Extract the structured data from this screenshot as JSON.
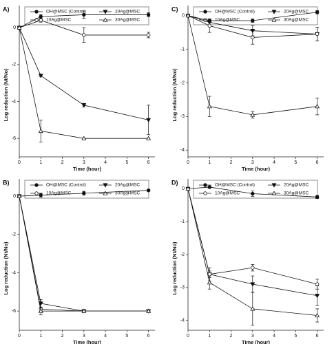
{
  "chart_data": [
    {
      "type": "line",
      "label": "A)",
      "xlabel": "Time (hour)",
      "ylabel": "Log reduction (Nt/No)",
      "x": [
        0,
        1,
        3,
        6
      ],
      "xlim": [
        0,
        6.3
      ],
      "xticks": [
        0,
        1,
        2,
        3,
        4,
        5,
        6
      ],
      "ylim": [
        -7,
        1.2
      ],
      "yticks": [
        0,
        -2,
        -4,
        -6
      ],
      "legend": "top",
      "series": [
        {
          "name": "OH@MSC (Control)",
          "color": "#111111",
          "marker": "circle-filled",
          "values": [
            0,
            0.6,
            0.7,
            0.7
          ],
          "errors": [
            0,
            0.1,
            0.2,
            0.1
          ]
        },
        {
          "name": "20Ag@MSC",
          "color": "#111111",
          "marker": "triangle-down-filled",
          "values": [
            0,
            -2.6,
            -4.2,
            -5.0
          ],
          "errors": [
            0,
            0.05,
            0.1,
            0.8
          ]
        },
        {
          "name": "10Ag@MSC",
          "color": "#111111",
          "marker": "circle-open",
          "values": [
            0,
            0.4,
            -0.4,
            -0.4
          ],
          "errors": [
            0,
            0.1,
            0.4,
            0.15
          ]
        },
        {
          "name": "30Ag@MSC",
          "color": "#111111",
          "marker": "triangle-up-open",
          "values": [
            0,
            -5.6,
            -6.0,
            -6.0
          ],
          "errors": [
            0,
            0.6,
            0,
            0
          ]
        }
      ]
    },
    {
      "type": "line",
      "label": "C)",
      "xlabel": "Time (hour)",
      "ylabel": "Log reduction (Nt/No)",
      "x": [
        0,
        1,
        3,
        6
      ],
      "xlim": [
        0,
        6.3
      ],
      "xticks": [
        0,
        1,
        2,
        3,
        4,
        5,
        6
      ],
      "ylim": [
        -4.2,
        0.3
      ],
      "yticks": [
        0,
        -1,
        -2,
        -3,
        -4
      ],
      "legend": "top",
      "series": [
        {
          "name": "OH@MSC (Control)",
          "color": "#111111",
          "marker": "circle-filled",
          "values": [
            0,
            -0.15,
            -0.15,
            0.1
          ],
          "errors": [
            0,
            0.05,
            0.05,
            0.05
          ]
        },
        {
          "name": "20Ag@MSC",
          "color": "#111111",
          "marker": "triangle-down-filled",
          "values": [
            0,
            -0.2,
            -0.45,
            -0.55
          ],
          "errors": [
            0,
            0.1,
            0.15,
            0.2
          ]
        },
        {
          "name": "10Ag@MSC",
          "color": "#111111",
          "marker": "circle-open",
          "values": [
            0,
            -0.3,
            -0.65,
            -0.55
          ],
          "errors": [
            0,
            0.2,
            0.2,
            0.2
          ]
        },
        {
          "name": "30Ag@MSC",
          "color": "#111111",
          "marker": "triangle-up-open",
          "values": [
            0,
            -2.7,
            -2.95,
            -2.7
          ],
          "errors": [
            0,
            0.3,
            0.1,
            0.25
          ]
        }
      ]
    },
    {
      "type": "line",
      "label": "B)",
      "xlabel": "Time (hour)",
      "ylabel": "Log reduction (Nt/No)",
      "x": [
        0,
        1,
        3,
        6
      ],
      "xlim": [
        0,
        6.3
      ],
      "xticks": [
        0,
        1,
        2,
        3,
        4,
        5,
        6
      ],
      "ylim": [
        -7,
        0.9
      ],
      "yticks": [
        0,
        -2,
        -4,
        -6
      ],
      "legend": "top",
      "series": [
        {
          "name": "OH@MSC (Control)",
          "color": "#111111",
          "marker": "circle-filled",
          "values": [
            0,
            0.05,
            0.15,
            0.3
          ],
          "errors": [
            0,
            0.1,
            0.1,
            0.05
          ]
        },
        {
          "name": "20Ag@MSC",
          "color": "#111111",
          "marker": "triangle-down-filled",
          "values": [
            0,
            -5.6,
            -6.0,
            -6.0
          ],
          "errors": [
            0,
            0.2,
            0,
            0
          ]
        },
        {
          "name": "10Ag@MSC",
          "color": "#111111",
          "marker": "circle-open",
          "values": [
            0,
            -5.9,
            -6.0,
            -6.0
          ],
          "errors": [
            0,
            0.1,
            0,
            0
          ]
        },
        {
          "name": "30Ag@MSC",
          "color": "#111111",
          "marker": "triangle-up-open",
          "values": [
            0,
            -6.0,
            -6.0,
            -6.0
          ],
          "errors": [
            0,
            0.2,
            0,
            0
          ]
        }
      ]
    },
    {
      "type": "line",
      "label": "D)",
      "xlabel": "Time (hour)",
      "ylabel": "Log reduction (Nt/No)",
      "x": [
        0,
        1,
        3,
        6
      ],
      "xlim": [
        0,
        6.3
      ],
      "xticks": [
        0,
        1,
        2,
        3,
        4,
        5,
        6
      ],
      "ylim": [
        -4.3,
        0.3
      ],
      "yticks": [
        0,
        -1,
        -2,
        -3,
        -4
      ],
      "legend": "top",
      "series": [
        {
          "name": "OH@MSC (Control)",
          "color": "#111111",
          "marker": "circle-filled",
          "values": [
            0,
            0.05,
            -0.15,
            -0.25
          ],
          "errors": [
            0,
            0.03,
            0.08,
            0.05
          ]
        },
        {
          "name": "20Ag@MSC",
          "color": "#111111",
          "marker": "triangle-down-filled",
          "values": [
            0,
            -2.6,
            -2.9,
            -3.25
          ],
          "errors": [
            0,
            0.2,
            0.25,
            0.3
          ]
        },
        {
          "name": "10Ag@MSC",
          "color": "#111111",
          "marker": "circle-open",
          "values": [
            0,
            -2.6,
            -2.4,
            -2.9
          ],
          "errors": [
            0,
            0.1,
            0.1,
            0.15
          ]
        },
        {
          "name": "30Ag@MSC",
          "color": "#111111",
          "marker": "triangle-up-open",
          "values": [
            0,
            -2.85,
            -3.65,
            -3.85
          ],
          "errors": [
            0,
            0.2,
            0.5,
            0.2
          ]
        }
      ]
    }
  ]
}
